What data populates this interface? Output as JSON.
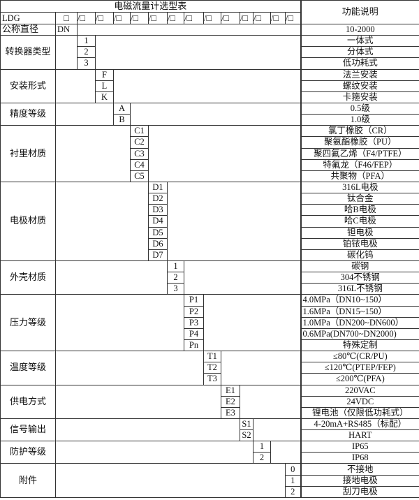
{
  "title": "电磁流量计选型表",
  "function_header": "功能说明",
  "model_row": {
    "model": "LDG",
    "first_box": "□",
    "boxes": [
      "/□",
      "/□",
      "/□",
      "/□",
      "/□",
      "/□",
      "/□",
      "/□",
      "/□",
      "/□",
      "/□",
      "/□",
      "/□"
    ]
  },
  "nominal_diameter": {
    "label": "公称直径",
    "code": "DN",
    "desc": "10-2000"
  },
  "groups": [
    {
      "label": "转换器类型",
      "items": [
        {
          "code": "1",
          "desc": "一体式"
        },
        {
          "code": "2",
          "desc": "分体式"
        },
        {
          "code": "3",
          "desc": "低功耗式"
        }
      ]
    },
    {
      "label": "安装形式",
      "items": [
        {
          "code": "F",
          "desc": "法兰安装"
        },
        {
          "code": "L",
          "desc": "螺纹安装"
        },
        {
          "code": "K",
          "desc": "卡箍安装"
        }
      ]
    },
    {
      "label": "精度等级",
      "items": [
        {
          "code": "A",
          "desc": "0.5级"
        },
        {
          "code": "B",
          "desc": "1.0级"
        }
      ]
    },
    {
      "label": "衬里材质",
      "items": [
        {
          "code": "C1",
          "desc": "氯丁橡胶（CR）"
        },
        {
          "code": "C2",
          "desc": "聚氨酯橡胶（PU）"
        },
        {
          "code": "C3",
          "desc": "聚四氟乙烯（F4/PTFE）"
        },
        {
          "code": "C4",
          "desc": "特氟龙（F46/FEP）"
        },
        {
          "code": "C5",
          "desc": "共聚物（PFA）"
        }
      ]
    },
    {
      "label": "电极材质",
      "items": [
        {
          "code": "D1",
          "desc": "316L电极"
        },
        {
          "code": "D2",
          "desc": "钛合金"
        },
        {
          "code": "D3",
          "desc": "哈B电极"
        },
        {
          "code": "D4",
          "desc": "哈C电极"
        },
        {
          "code": "D5",
          "desc": "钽电极"
        },
        {
          "code": "D6",
          "desc": "铂铱电极"
        },
        {
          "code": "D7",
          "desc": "碳化钨"
        }
      ]
    },
    {
      "label": "外壳材质",
      "items": [
        {
          "code": "1",
          "desc": "碳钢"
        },
        {
          "code": "2",
          "desc": "304不锈钢"
        },
        {
          "code": "3",
          "desc": "316L不锈钢"
        }
      ]
    },
    {
      "label": "压力等级",
      "items": [
        {
          "code": "P1",
          "desc": "4.0MPa（DN10~150）",
          "left": true
        },
        {
          "code": "P2",
          "desc": "1.6MPa（DN15~150）",
          "left": true
        },
        {
          "code": "P3",
          "desc": "1.0MPa（DN200~DN600）",
          "left": true
        },
        {
          "code": "P4",
          "desc": "0.6MPa(DN700~DN2000)",
          "left": true
        },
        {
          "code": "Pn",
          "desc": "特殊定制"
        }
      ]
    },
    {
      "label": "温度等级",
      "items": [
        {
          "code": "T1",
          "desc": "≤80℃(CR/PU)"
        },
        {
          "code": "T2",
          "desc": "≤120℃(PTEP/FEP)"
        },
        {
          "code": "T3",
          "desc": "≤200℃(PFA)"
        }
      ]
    },
    {
      "label": "供电方式",
      "items": [
        {
          "code": "E1",
          "desc": "220VAC"
        },
        {
          "code": "E2",
          "desc": "24VDC"
        },
        {
          "code": "E3",
          "desc": "锂电池（仅限低功耗式）"
        }
      ]
    },
    {
      "label": "信号输出",
      "items": [
        {
          "code": "S1",
          "desc": "4-20mA+RS485（标配）"
        },
        {
          "code": "S2",
          "desc": "HART"
        }
      ]
    },
    {
      "label": "防护等级",
      "items": [
        {
          "code": "1",
          "desc": "IP65"
        },
        {
          "code": "2",
          "desc": "IP68"
        }
      ]
    },
    {
      "label": "附件",
      "items": [
        {
          "code": "0",
          "desc": "不接地"
        },
        {
          "code": "1",
          "desc": "接地电极"
        },
        {
          "code": "2",
          "desc": "刮刀电极"
        }
      ]
    }
  ]
}
